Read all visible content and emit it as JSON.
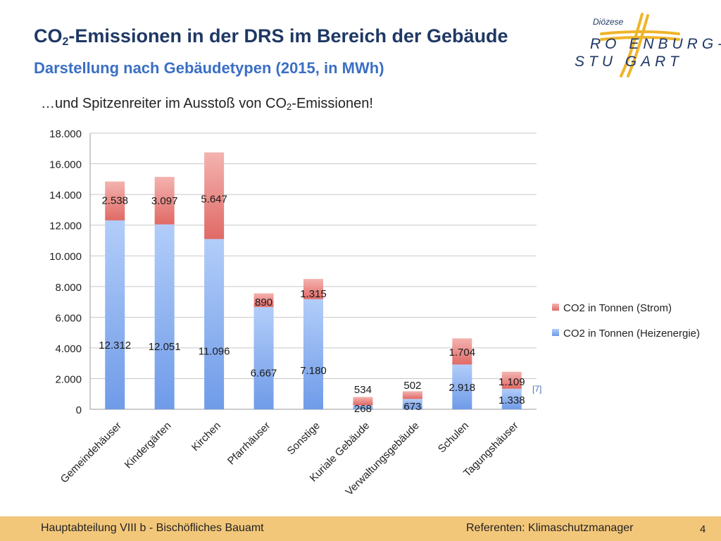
{
  "slide": {
    "title_main": "CO",
    "title_sub": "2",
    "title_rest": "-Emissionen in der DRS im Bereich der Gebäude",
    "subtitle": "Darstellung nach Gebäudetypen (2015, in MWh)",
    "tagline_main": "…und Spitzenreiter im Ausstoß von CO",
    "tagline_sub": "2",
    "tagline_rest": "-Emissionen!"
  },
  "logo": {
    "top": "Diözese",
    "line1": "RO  ENBURG-",
    "line2": "STU  GART",
    "color": "#f0b429"
  },
  "chart_data": {
    "type": "bar",
    "stacked": true,
    "categories": [
      "Gemeindehäuser",
      "Kindergärten",
      "Kirchen",
      "Pfarrhäuser",
      "Sonstige",
      "Kuriale Gebäude",
      "Verwaltungsgebäude",
      "Schulen",
      "Tagungshäuser"
    ],
    "series": [
      {
        "name": "CO2 in Tonnen (Heizenergie)",
        "color": "#6f9be8",
        "values": [
          12312,
          12051,
          11096,
          6667,
          7180,
          268,
          673,
          2918,
          1338
        ],
        "labels": [
          "12.312",
          "12.051",
          "11.096",
          "6.667",
          "7.180",
          "268",
          "673",
          "2.918",
          "1.338"
        ]
      },
      {
        "name": "CO2 in Tonnen (Strom)",
        "color": "#e06a66",
        "values": [
          2538,
          3097,
          5647,
          890,
          1315,
          534,
          502,
          1704,
          1109
        ],
        "labels": [
          "2.538",
          "3.097",
          "5.647",
          "890",
          "1.315",
          "534",
          "502",
          "1.704",
          "1.109"
        ]
      }
    ],
    "ylim": [
      0,
      18000
    ],
    "yticks": [
      0,
      2000,
      4000,
      6000,
      8000,
      10000,
      12000,
      14000,
      16000,
      18000
    ],
    "ytick_labels": [
      "0",
      "2.000",
      "4.000",
      "6.000",
      "8.000",
      "10.000",
      "12.000",
      "14.000",
      "16.000",
      "18.000"
    ],
    "grid": true,
    "legend_position": "right",
    "annotation": "[7]"
  },
  "footer": {
    "left": "Hauptabteilung VIII b - Bischöfliches Bauamt",
    "right": "Referenten: Klimaschutzmanager",
    "page": "4"
  }
}
